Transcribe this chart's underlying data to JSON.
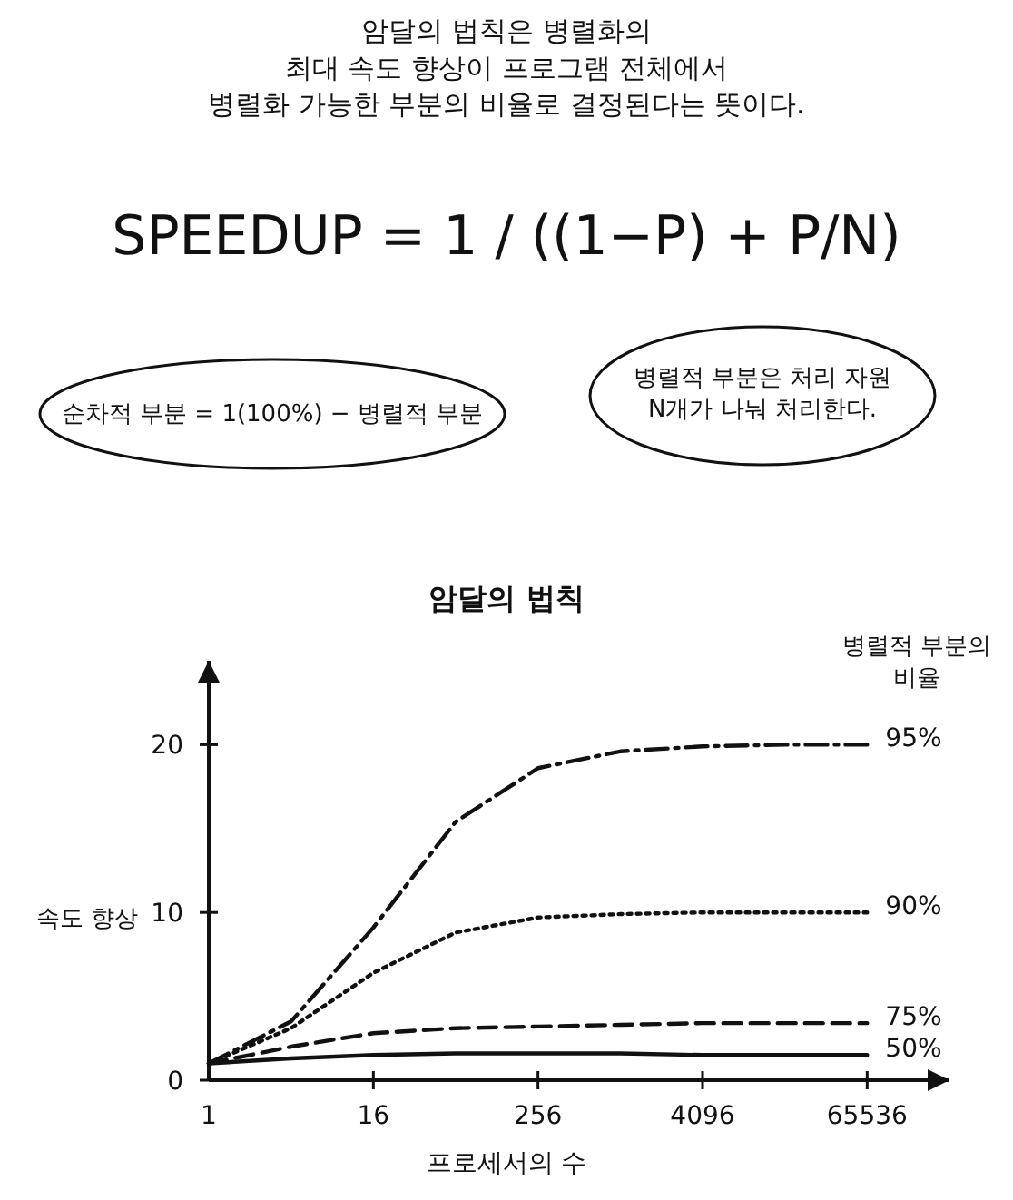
{
  "chart_data": {
    "type": "line",
    "title": "암달의 법칙",
    "xlabel": "프로세서의 수",
    "ylabel": "속도 향상",
    "legend_title": "병렬적 부분의 비율",
    "legend": "right",
    "log": "x",
    "marker": "none",
    "grid": false,
    "annotations": [
      "암달의 법칙은 병렬화의\n최대 속도 향상이 프로그램 전체에서\n병렬화 가능한 부분의 비율로 결정된다는 뜻이다.",
      "SPEEDUP = 1 / ((1−P) + P/N)",
      "순차적 부분 = 1(100%) − 병렬적 부분",
      "병렬적 부분은 처리 자원\nN개가 나눠 처리한다."
    ],
    "x": [
      1,
      4,
      16,
      64,
      256,
      1024,
      4096,
      16384,
      65536
    ],
    "xlim": [
      1,
      262144
    ],
    "xticks": [
      1,
      16,
      256,
      4096,
      65536
    ],
    "ylim": [
      0,
      25
    ],
    "yticks": [
      0,
      10,
      20
    ],
    "series": [
      {
        "name": "95%",
        "color": "#111111",
        "line_style": "dashdot",
        "values": [
          1,
          3.5,
          9.1,
          15.4,
          18.6,
          19.6,
          19.9,
          20,
          20
        ]
      },
      {
        "name": "90%",
        "color": "#111111",
        "line_style": "dotted",
        "values": [
          1,
          3.1,
          6.4,
          8.8,
          9.7,
          9.9,
          10,
          10,
          10
        ]
      },
      {
        "name": "75%",
        "color": "#111111",
        "line_style": "dashed",
        "values": [
          1,
          2.0,
          2.8,
          3.1,
          3.2,
          3.3,
          3.4,
          3.4,
          3.4
        ]
      },
      {
        "name": "50%",
        "color": "#111111",
        "line_style": "solid",
        "values": [
          1,
          1.3,
          1.5,
          1.6,
          1.6,
          1.6,
          1.5,
          1.5,
          1.5
        ]
      }
    ]
  }
}
